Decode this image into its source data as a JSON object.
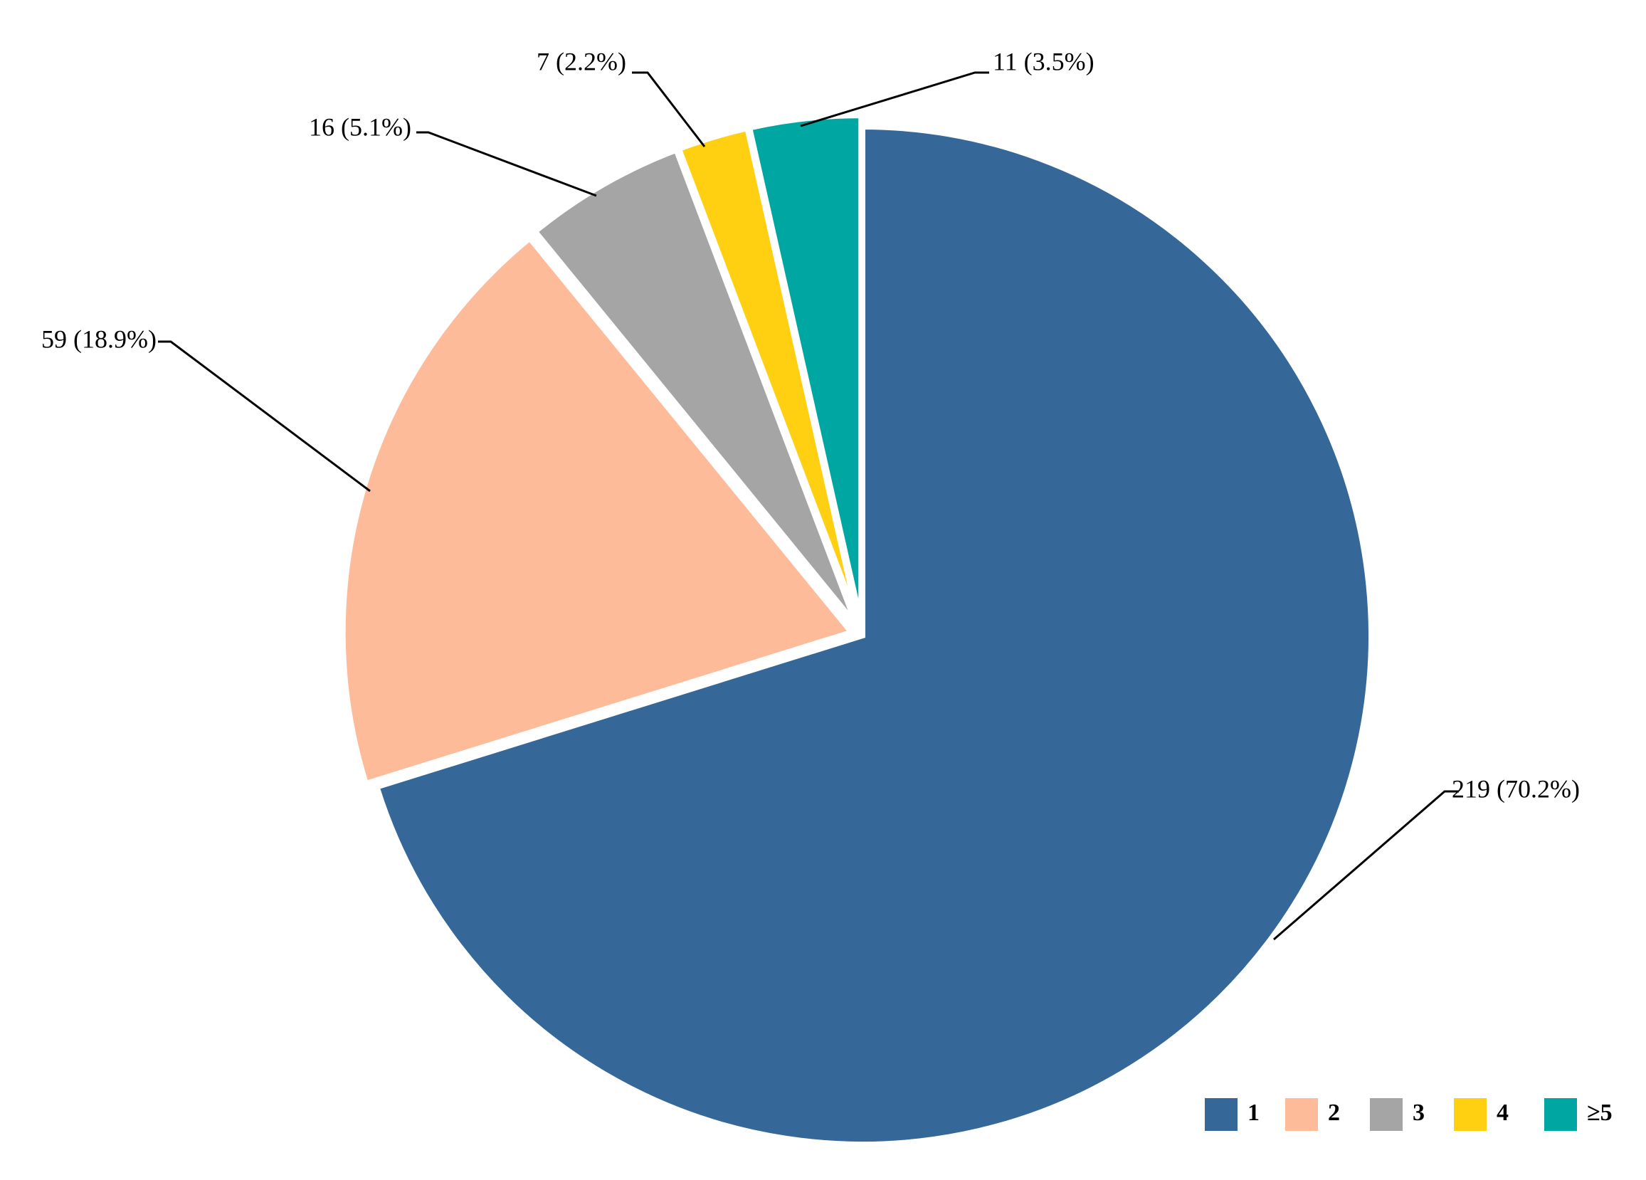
{
  "chart_data": {
    "type": "pie",
    "title": "",
    "start": "12 o'clock, clockwise",
    "slices": [
      {
        "label": "1",
        "value": 219,
        "percent": 70.2,
        "data_label": "219 (70.2%)",
        "color": "#356899"
      },
      {
        "label": "2",
        "value": 59,
        "percent": 18.9,
        "data_label": "59 (18.9%)",
        "color": "#FDBB9A"
      },
      {
        "label": "3",
        "value": 16,
        "percent": 5.1,
        "data_label": "16 (5.1%)",
        "color": "#A5A5A5"
      },
      {
        "label": "4",
        "value": 7,
        "percent": 2.2,
        "data_label": "7 (2.2%)",
        "color": "#FFD012"
      },
      {
        "label": "≥5",
        "value": 11,
        "percent": 3.5,
        "data_label": "11 (3.5%)",
        "color": "#00A6A1"
      }
    ],
    "legend": {
      "position": "bottom-right",
      "entries": [
        "1",
        "2",
        "3",
        "4",
        "≥5"
      ]
    }
  }
}
